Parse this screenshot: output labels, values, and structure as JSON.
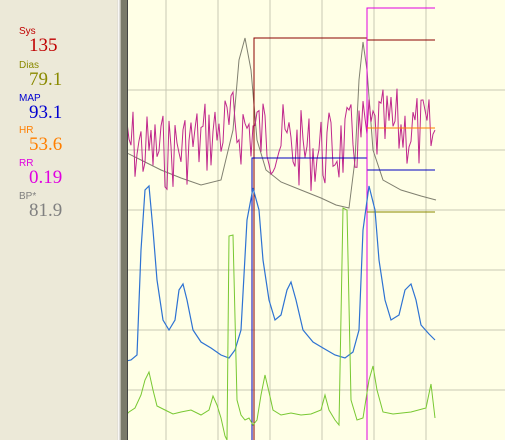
{
  "readouts": [
    {
      "label": "Sys",
      "value": "135",
      "color": "#c00000"
    },
    {
      "label": "Dias",
      "value": "79.1",
      "color": "#8a8a00"
    },
    {
      "label": "MAP",
      "value": "93.1",
      "color": "#0000d0"
    },
    {
      "label": "HR",
      "value": "53.6",
      "color": "#ff7f00"
    },
    {
      "label": "RR",
      "value": "0.19",
      "color": "#e000e0"
    },
    {
      "label": "BP*",
      "value": "81.9",
      "color": "#808080"
    }
  ],
  "traces": {
    "respiratory": {
      "color": "#c0288c"
    },
    "arterial_pressure": {
      "color": "#2d72d2"
    },
    "ecg": {
      "color": "#78c832"
    },
    "pressure_overlay": {
      "color": "#808070"
    }
  }
}
